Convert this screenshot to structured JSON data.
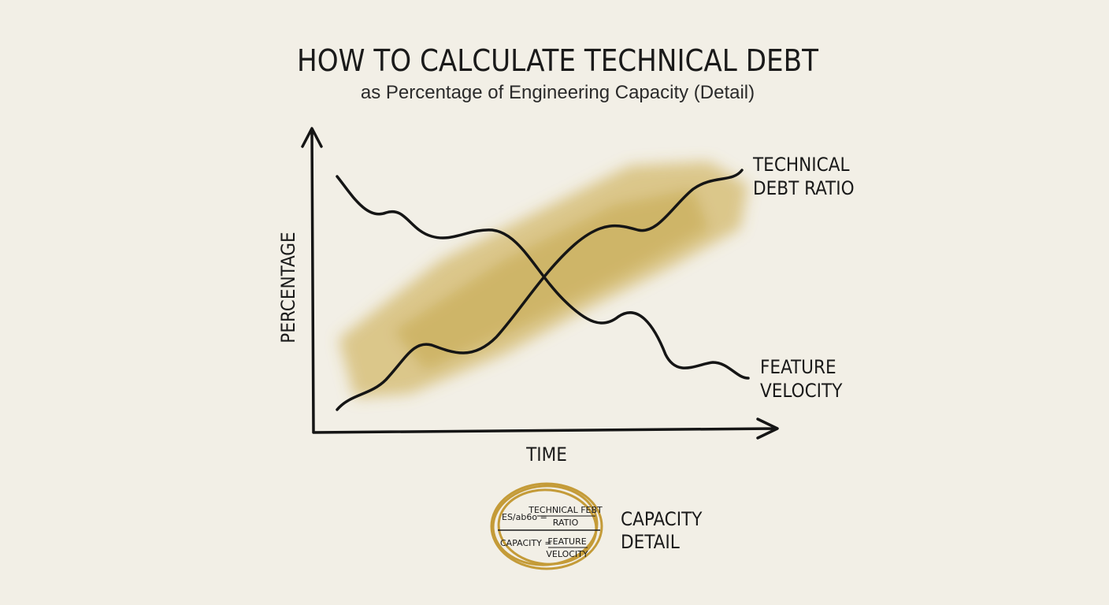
{
  "header": {
    "title": "HOW TO CALCULATE TECHNICAL DEBT",
    "subtitle": "as Percentage of Engineering Capacity (Detail)"
  },
  "axes": {
    "y_label": "PERCENTAGE",
    "x_label": "TIME"
  },
  "curve_labels": [
    {
      "lines": [
        "TECHNICAL",
        "DEBT RATIO"
      ]
    },
    {
      "lines": [
        "FEATURE",
        "VELOCITY"
      ]
    }
  ],
  "formula": {
    "row1": {
      "left": "ES/ab6o =",
      "numerator": "TECHNICAL FEBT",
      "denominator": "RATIO"
    },
    "row2": {
      "left": "CAPACITY =",
      "numerator": "FEATURE",
      "denominator": "VELOCITY"
    },
    "caption": [
      "CAPACITY",
      "DETAIL"
    ]
  }
}
